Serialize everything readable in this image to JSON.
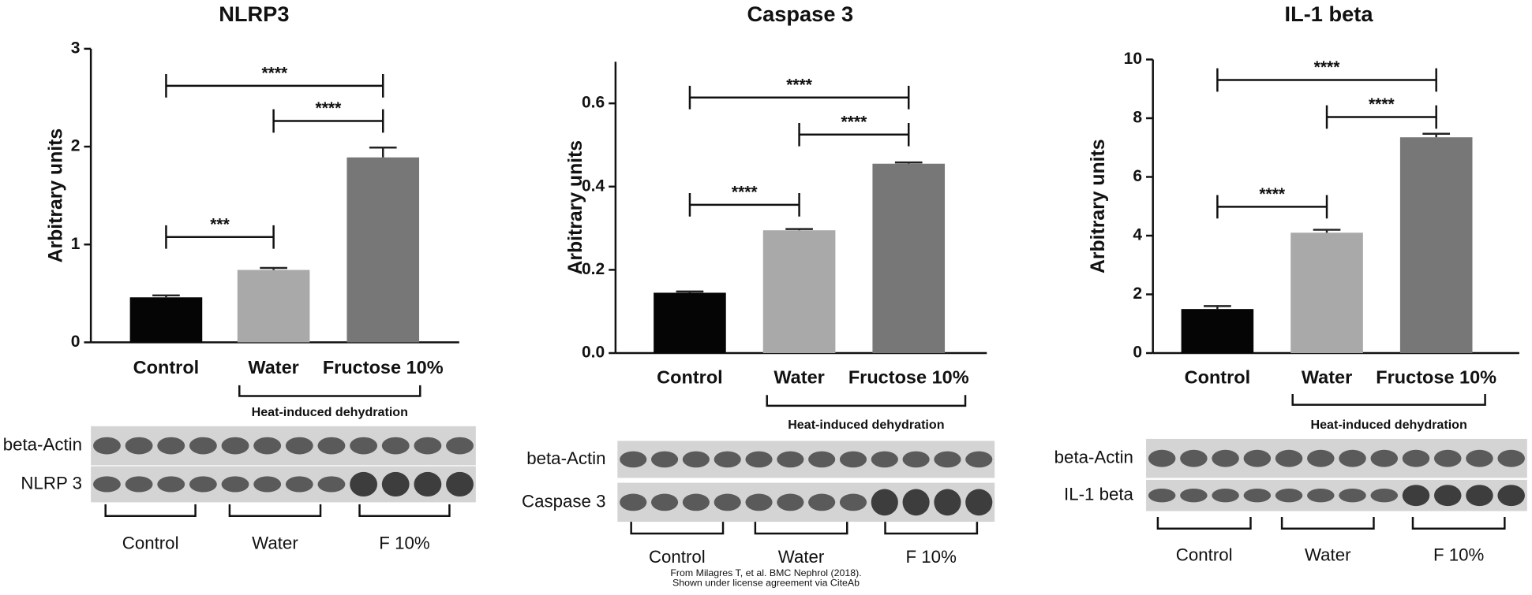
{
  "chart_data": [
    {
      "type": "bar",
      "title": "NLRP3",
      "y_label": "Arbitrary units",
      "categories": [
        "Control",
        "Water",
        "Fructose 10%"
      ],
      "values": [
        0.46,
        0.74,
        1.89
      ],
      "errors": [
        0.02,
        0.02,
        0.1
      ],
      "colors": [
        "#050505",
        "#a9a9a9",
        "#777777"
      ],
      "ylim": [
        0,
        3
      ],
      "yticks": [
        0,
        1,
        2,
        3
      ],
      "brackets": [
        {
          "from": 0,
          "to": 2,
          "label": "****"
        },
        {
          "from": 1,
          "to": 2,
          "label": "****"
        },
        {
          "from": 0,
          "to": 1,
          "label": "***"
        }
      ],
      "group_label": "Heat-induced dehydration",
      "blot": {
        "rows": [
          "beta-Actin",
          "NLRP 3"
        ],
        "groups": [
          "Control",
          "Water",
          "F 10%"
        ]
      }
    },
    {
      "type": "bar",
      "title": "Caspase 3",
      "y_label": "Arbitrary units",
      "categories": [
        "Control",
        "Water",
        "Fructose 10%"
      ],
      "values": [
        0.145,
        0.295,
        0.455
      ],
      "errors": [
        0.003,
        0.003,
        0.003
      ],
      "colors": [
        "#050505",
        "#a9a9a9",
        "#777777"
      ],
      "ylim": [
        0,
        0.7
      ],
      "yticks": [
        {
          "value": 0,
          "label": "0.0"
        },
        0.2,
        0.4,
        0.6
      ],
      "brackets": [
        {
          "from": 0,
          "to": 2,
          "label": "****"
        },
        {
          "from": 1,
          "to": 2,
          "label": "****"
        },
        {
          "from": 0,
          "to": 1,
          "label": "****"
        }
      ],
      "group_label": "Heat-induced dehydration",
      "blot": {
        "rows": [
          "beta-Actin",
          "Caspase 3"
        ],
        "groups": [
          "Control",
          "Water",
          "F 10%"
        ]
      }
    },
    {
      "type": "bar",
      "title": "IL-1 beta",
      "y_label": "Arbitrary units",
      "categories": [
        "Control",
        "Water",
        "Fructose 10%"
      ],
      "values": [
        1.5,
        4.1,
        7.35
      ],
      "errors": [
        0.1,
        0.1,
        0.12
      ],
      "colors": [
        "#050505",
        "#a9a9a9",
        "#777777"
      ],
      "ylim": [
        0,
        10
      ],
      "yticks": [
        0,
        2,
        4,
        6,
        8,
        10
      ],
      "brackets": [
        {
          "from": 0,
          "to": 2,
          "label": "****"
        },
        {
          "from": 1,
          "to": 2,
          "label": "****"
        },
        {
          "from": 0,
          "to": 1,
          "label": "****"
        }
      ],
      "group_label": "Heat-induced dehydration",
      "blot": {
        "rows": [
          "beta-Actin",
          "IL-1 beta"
        ],
        "groups": [
          "Control",
          "Water",
          "F 10%"
        ]
      }
    }
  ],
  "footer": {
    "lines": [
      "From Milagres T, et al. BMC Nephrol (2018).",
      "Shown under license agreement via CiteAb"
    ]
  }
}
